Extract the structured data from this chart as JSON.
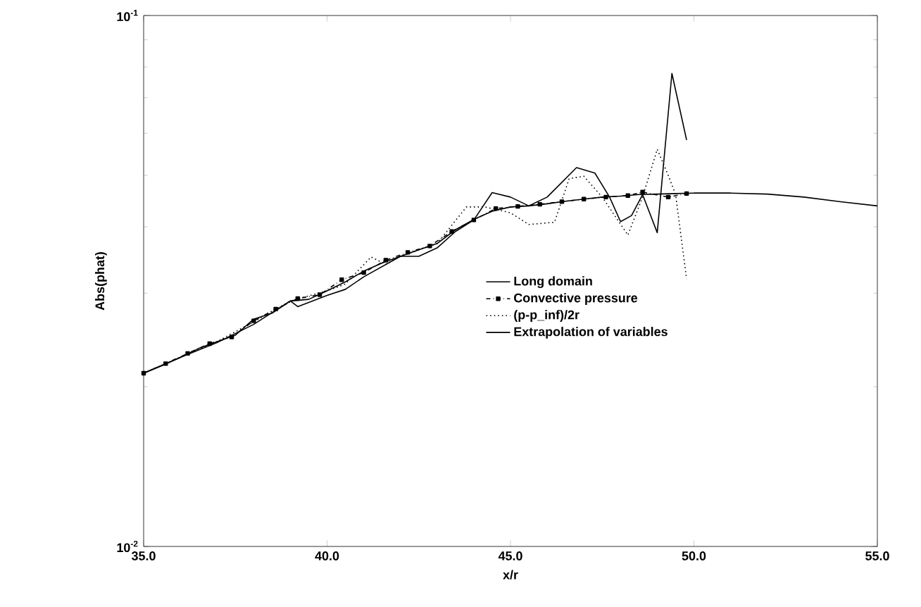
{
  "chart_data": {
    "type": "line",
    "xlabel": "x/r",
    "ylabel": "Abs(phat)",
    "log": "y",
    "xlim": [
      35,
      55
    ],
    "ylim": [
      0.01,
      0.1
    ],
    "xticks": [
      {
        "value": 35,
        "label": "35.0"
      },
      {
        "value": 40,
        "label": "40.0"
      },
      {
        "value": 45,
        "label": "45.0"
      },
      {
        "value": 50,
        "label": "50.0"
      },
      {
        "value": 55,
        "label": "55.0"
      }
    ],
    "yticks": [
      {
        "value": 0.01,
        "label": "10$^{-2}$"
      },
      {
        "value": 0.1,
        "label": "10$^{-1}$"
      }
    ],
    "legend": "center",
    "series": [
      {
        "name": "Long domain",
        "color": "#000000",
        "line_style": "solid",
        "x": [
          35,
          35.5,
          36,
          36.5,
          37,
          37.5,
          38,
          38.5,
          39,
          39.5,
          40,
          40.5,
          41,
          41.5,
          42,
          42.5,
          43,
          43.5,
          44,
          44.5,
          45,
          45.5,
          46,
          46.5,
          47,
          47.5,
          48,
          48.5,
          49,
          49.5,
          50,
          51,
          52,
          53,
          54,
          55
        ],
        "values": [
          0.0212,
          0.0219,
          0.0227,
          0.0236,
          0.0243,
          0.025,
          0.0268,
          0.0275,
          0.029,
          0.0292,
          0.0303,
          0.0315,
          0.033,
          0.0342,
          0.0352,
          0.0362,
          0.0372,
          0.0395,
          0.0413,
          0.0428,
          0.0436,
          0.0438,
          0.0442,
          0.0447,
          0.0451,
          0.0455,
          0.0457,
          0.046,
          0.0461,
          0.0462,
          0.0463,
          0.0463,
          0.0461,
          0.0455,
          0.0446,
          0.0438
        ]
      },
      {
        "name": "Convective pressure",
        "color": "#000000",
        "line_style": "dashdot",
        "marker": "square",
        "x": [
          35,
          35.6,
          36.2,
          36.8,
          37.4,
          38,
          38.6,
          39.2,
          39.8,
          40.4,
          41,
          41.6,
          42.2,
          42.8,
          43.4,
          44,
          44.6,
          45.2,
          45.8,
          46.4,
          47,
          47.6,
          48.2,
          48.6,
          49.3,
          49.8
        ],
        "values": [
          0.0212,
          0.0221,
          0.0231,
          0.0241,
          0.0248,
          0.0266,
          0.028,
          0.0293,
          0.0298,
          0.0318,
          0.0328,
          0.0346,
          0.0358,
          0.0368,
          0.0392,
          0.0412,
          0.0433,
          0.0437,
          0.0441,
          0.0446,
          0.0451,
          0.0455,
          0.0458,
          0.0465,
          0.0455,
          0.0462
        ]
      },
      {
        "name": "(p-p_inf)/2r",
        "color": "#000000",
        "line_style": "dotted",
        "x": [
          35,
          36,
          37,
          38,
          39,
          40,
          40.5,
          41.2,
          41.6,
          42,
          43,
          43.8,
          44.3,
          45,
          45.5,
          46.2,
          46.6,
          47,
          47.5,
          48.2,
          48.6,
          49,
          49.3,
          49.5,
          49.8
        ],
        "values": [
          0.0212,
          0.0227,
          0.0243,
          0.0265,
          0.029,
          0.0303,
          0.0312,
          0.0351,
          0.034,
          0.0352,
          0.0372,
          0.0436,
          0.0436,
          0.0425,
          0.0404,
          0.0408,
          0.0493,
          0.0498,
          0.0455,
          0.0386,
          0.0455,
          0.056,
          0.05,
          0.046,
          0.0319
        ]
      },
      {
        "name": "Extrapolation of variables",
        "color": "#000000",
        "line_style": "solid",
        "x": [
          35,
          36,
          37,
          38,
          39,
          39.2,
          40,
          40.5,
          41,
          42,
          42.5,
          43,
          43.5,
          44,
          44.5,
          45,
          45.5,
          46,
          46.8,
          47.3,
          47.7,
          48,
          48.3,
          48.6,
          49,
          49.4,
          49.8
        ],
        "values": [
          0.0212,
          0.0227,
          0.0242,
          0.0262,
          0.029,
          0.0283,
          0.0297,
          0.0305,
          0.0322,
          0.0352,
          0.0352,
          0.0365,
          0.0392,
          0.0412,
          0.0464,
          0.0455,
          0.0438,
          0.0455,
          0.0517,
          0.0505,
          0.0455,
          0.0409,
          0.042,
          0.046,
          0.039,
          0.0778,
          0.0583
        ]
      }
    ]
  }
}
